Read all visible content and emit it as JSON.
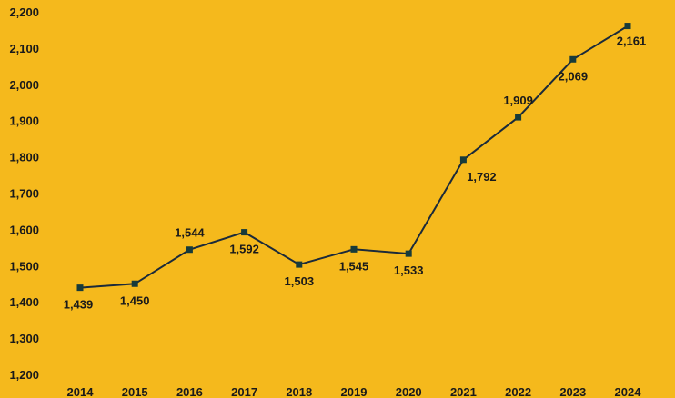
{
  "chart_data": {
    "type": "line",
    "x": [
      "2014",
      "2015",
      "2016",
      "2017",
      "2018",
      "2019",
      "2020",
      "2021",
      "2022",
      "2023",
      "2024"
    ],
    "values": [
      1439,
      1450,
      1544,
      1592,
      1503,
      1545,
      1533,
      1792,
      1909,
      2069,
      2161
    ],
    "value_labels": [
      "1,439",
      "1,450",
      "1,544",
      "1,592",
      "1,503",
      "1,545",
      "1,533",
      "1,792",
      "1,909",
      "2,069",
      "2,161"
    ],
    "label_positions": [
      "below",
      "below",
      "above",
      "below",
      "below",
      "below",
      "below",
      "below",
      "above",
      "below",
      "below"
    ],
    "yticks": [
      1200,
      1300,
      1400,
      1500,
      1600,
      1700,
      1800,
      1900,
      2000,
      2100,
      2200
    ],
    "ytick_labels": [
      "1,200",
      "1,300",
      "1,400",
      "1,500",
      "1,600",
      "1,700",
      "1,800",
      "1,900",
      "2,000",
      "2,100",
      "2,200"
    ],
    "ylim": [
      1200,
      2200
    ],
    "title": "",
    "xlabel": "",
    "ylabel": "",
    "grid": false,
    "legend": "none",
    "colors": {
      "background": "#F5B91C",
      "line": "#1B2A3A",
      "marker": "#173B3A",
      "text": "#1a1a1a"
    }
  }
}
